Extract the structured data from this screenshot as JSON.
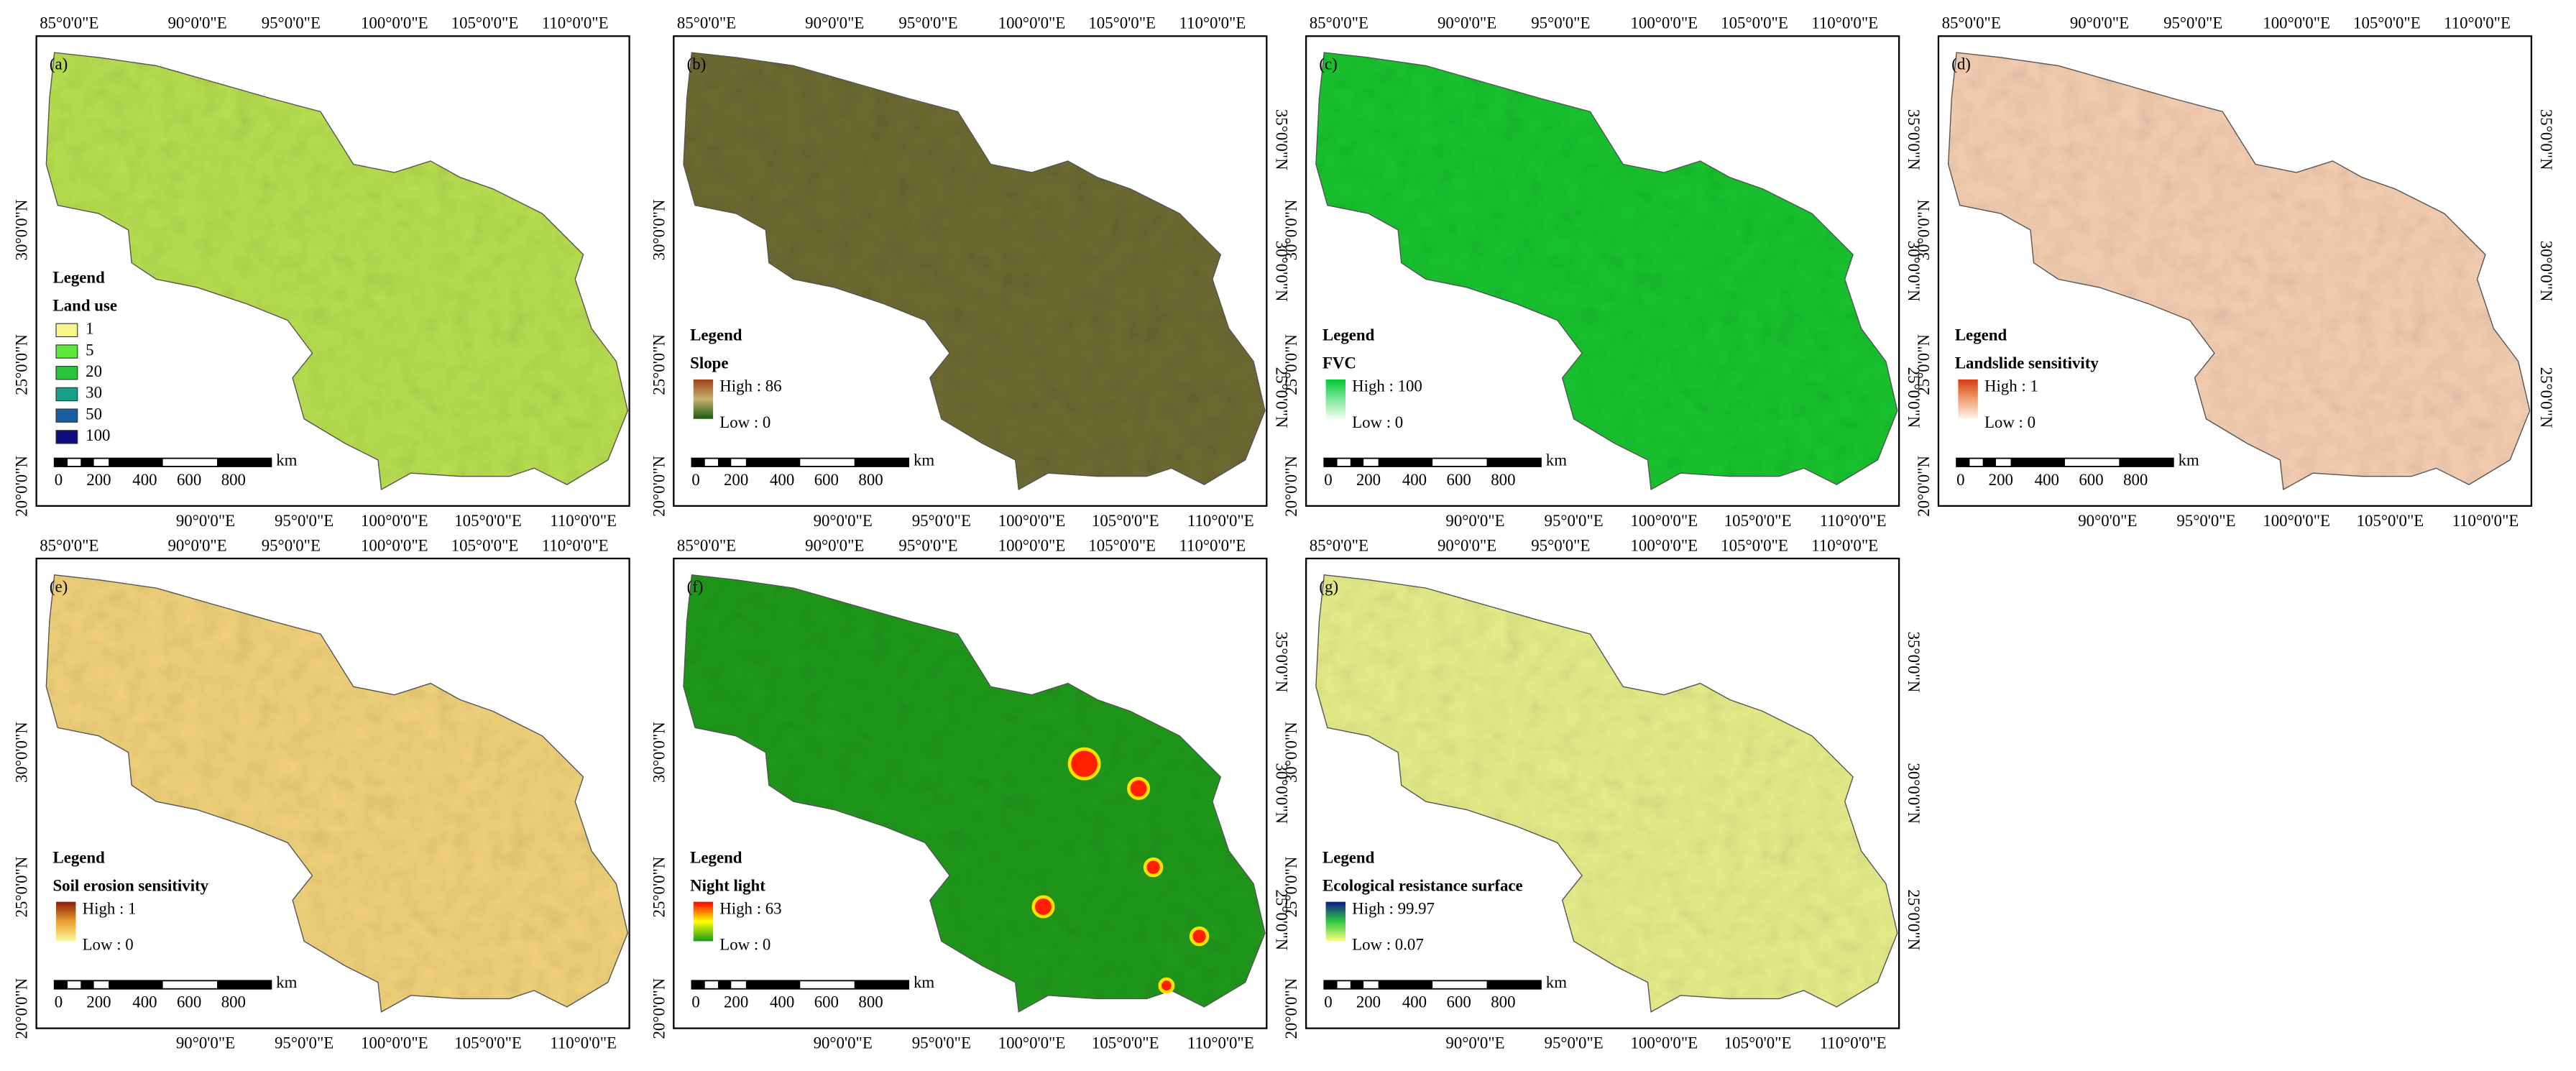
{
  "lon_top": [
    "85°0'0\"E",
    "90°0'0\"E",
    "95°0'0\"E",
    "100°0'0\"E",
    "105°0'0\"E",
    "110°0'0\"E"
  ],
  "lon_bottom": [
    "90°0'0\"E",
    "95°0'0\"E",
    "100°0'0\"E",
    "105°0'0\"E",
    "110°0'0\"E"
  ],
  "lat_left": [
    "20°0'0\"N",
    "25°0'0\"N",
    "30°0'0\"N"
  ],
  "lat_right": [
    "25°0'0\"N",
    "30°0'0\"N",
    "35°0'0\"N"
  ],
  "scale_bar": {
    "labels": [
      "0",
      "200",
      "400",
      "600",
      "800"
    ],
    "unit": "km"
  },
  "panels": [
    {
      "label": "(a)",
      "legend_heading": "Legend",
      "legend_title": "Land use",
      "classes": [
        {
          "label": "1",
          "color": "#f7f58b"
        },
        {
          "label": "5",
          "color": "#5ee83a"
        },
        {
          "label": "20",
          "color": "#2cc43a"
        },
        {
          "label": "30",
          "color": "#16a08a"
        },
        {
          "label": "50",
          "color": "#1a5ea0"
        },
        {
          "label": "100",
          "color": "#0c0c7a"
        }
      ]
    },
    {
      "label": "(b)",
      "legend_heading": "Legend",
      "legend_title": "Slope",
      "high": "High : 86",
      "low": "Low : 0",
      "ramp": [
        "#a0401a",
        "#c8b070",
        "#1a5a10"
      ]
    },
    {
      "label": "(c)",
      "legend_heading": "Legend",
      "legend_title": "FVC",
      "high": "High : 100",
      "low": "Low : 0",
      "ramp": [
        "#00c832",
        "#7ee89a",
        "#f0fff0"
      ]
    },
    {
      "label": "(d)",
      "legend_heading": "Legend",
      "legend_title": "Landslide sensitivity",
      "high": "High : 1",
      "low": "Low : 0",
      "ramp": [
        "#d83a10",
        "#f0a070",
        "#fff4ec"
      ]
    },
    {
      "label": "(e)",
      "legend_heading": "Legend",
      "legend_title": "Soil erosion sensitivity",
      "high": "High : 1",
      "low": "Low : 0",
      "ramp": [
        "#8a1a0a",
        "#e8a030",
        "#fff8a0"
      ]
    },
    {
      "label": "(f)",
      "legend_heading": "Legend",
      "legend_title": "Night light",
      "high": "High : 63",
      "low": "Low : 0",
      "ramp": [
        "#ff0000",
        "#ffff00",
        "#1a9a1a"
      ]
    },
    {
      "label": "(g)",
      "legend_heading": "Legend",
      "legend_title": "Ecological resistance surface",
      "high": "High : 99.97",
      "low": "Low : 0.07",
      "ramp": [
        "#0a1a8a",
        "#30c840",
        "#ffff80"
      ]
    }
  ]
}
